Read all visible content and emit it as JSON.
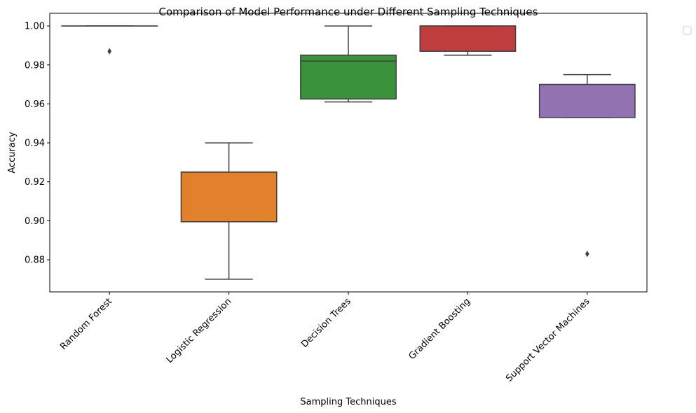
{
  "chart_data": {
    "type": "box",
    "title": "Comparison of Model Performance under Different Sampling Techniques",
    "xlabel": "Sampling Techniques",
    "ylabel": "Accuracy",
    "ylim": [
      0.8635,
      1.0065
    ],
    "yticks": [
      0.88,
      0.9,
      0.92,
      0.94,
      0.96,
      0.98,
      1.0
    ],
    "ytick_labels": [
      "0.88",
      "0.90",
      "0.92",
      "0.94",
      "0.96",
      "0.98",
      "1.00"
    ],
    "categories": [
      "Random Forest",
      "Logistic Regression",
      "Decision Trees",
      "Gradient Boosting",
      "Support Vector Machines"
    ],
    "boxes": [
      {
        "category": "Random Forest",
        "whisker_low": 1.0,
        "q1": 1.0,
        "median": 1.0,
        "q3": 1.0,
        "whisker_high": 1.0,
        "outliers": [
          0.987
        ],
        "color": "#1f77b4"
      },
      {
        "category": "Logistic Regression",
        "whisker_low": 0.87,
        "q1": 0.8995,
        "median": 0.925,
        "q3": 0.925,
        "whisker_high": 0.94,
        "outliers": [],
        "color": "#e1812c"
      },
      {
        "category": "Decision Trees",
        "whisker_low": 0.961,
        "q1": 0.9625,
        "median": 0.982,
        "q3": 0.985,
        "whisker_high": 1.0,
        "outliers": [],
        "color": "#3a923a"
      },
      {
        "category": "Gradient Boosting",
        "whisker_low": 0.985,
        "q1": 0.987,
        "median": 1.0,
        "q3": 1.0,
        "whisker_high": 1.0,
        "outliers": [],
        "color": "#c03d3e"
      },
      {
        "category": "Support Vector Machines",
        "whisker_low": 0.953,
        "q1": 0.953,
        "median": 0.97,
        "q3": 0.97,
        "whisker_high": 0.975,
        "outliers": [
          0.883
        ],
        "color": "#9372b2"
      }
    ],
    "grid": false,
    "legend": {
      "position": "outside-top-right",
      "entries": []
    }
  }
}
